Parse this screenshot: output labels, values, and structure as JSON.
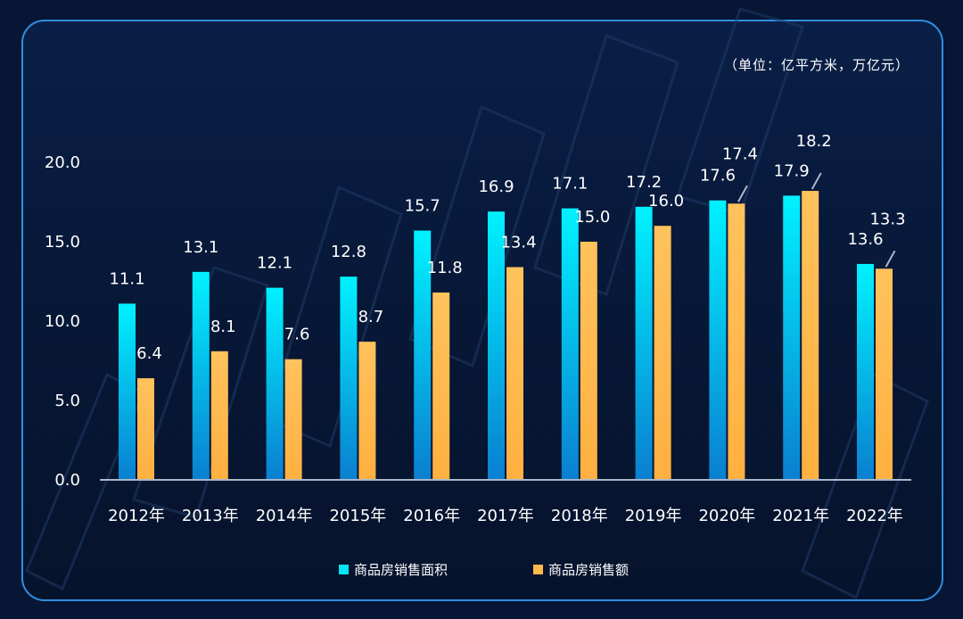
{
  "unit_label": "（单位：亿平方米，万亿元）",
  "colors": {
    "area_top": "#00f2ff",
    "area_bottom": "#0a7fd0",
    "sales_top": "#ffc25c",
    "sales_bottom": "#ffb040",
    "axis": "#aab7c8",
    "text": "#ffffff"
  },
  "chart_data": {
    "type": "bar",
    "categories": [
      "2012年",
      "2013年",
      "2014年",
      "2015年",
      "2016年",
      "2017年",
      "2018年",
      "2019年",
      "2020年",
      "2021年",
      "2022年"
    ],
    "series": [
      {
        "name": "商品房销售面积",
        "values": [
          11.1,
          13.1,
          12.1,
          12.8,
          15.7,
          16.9,
          17.1,
          17.2,
          17.6,
          17.9,
          13.6
        ]
      },
      {
        "name": "商品房销售额",
        "values": [
          6.4,
          8.1,
          7.6,
          8.7,
          11.8,
          13.4,
          15.0,
          16.0,
          17.4,
          18.2,
          13.3
        ]
      }
    ],
    "yticks": [
      "0.0",
      "5.0",
      "10.0",
      "15.0",
      "20.0"
    ],
    "ylim": [
      0,
      20
    ],
    "legend_position": "bottom"
  }
}
